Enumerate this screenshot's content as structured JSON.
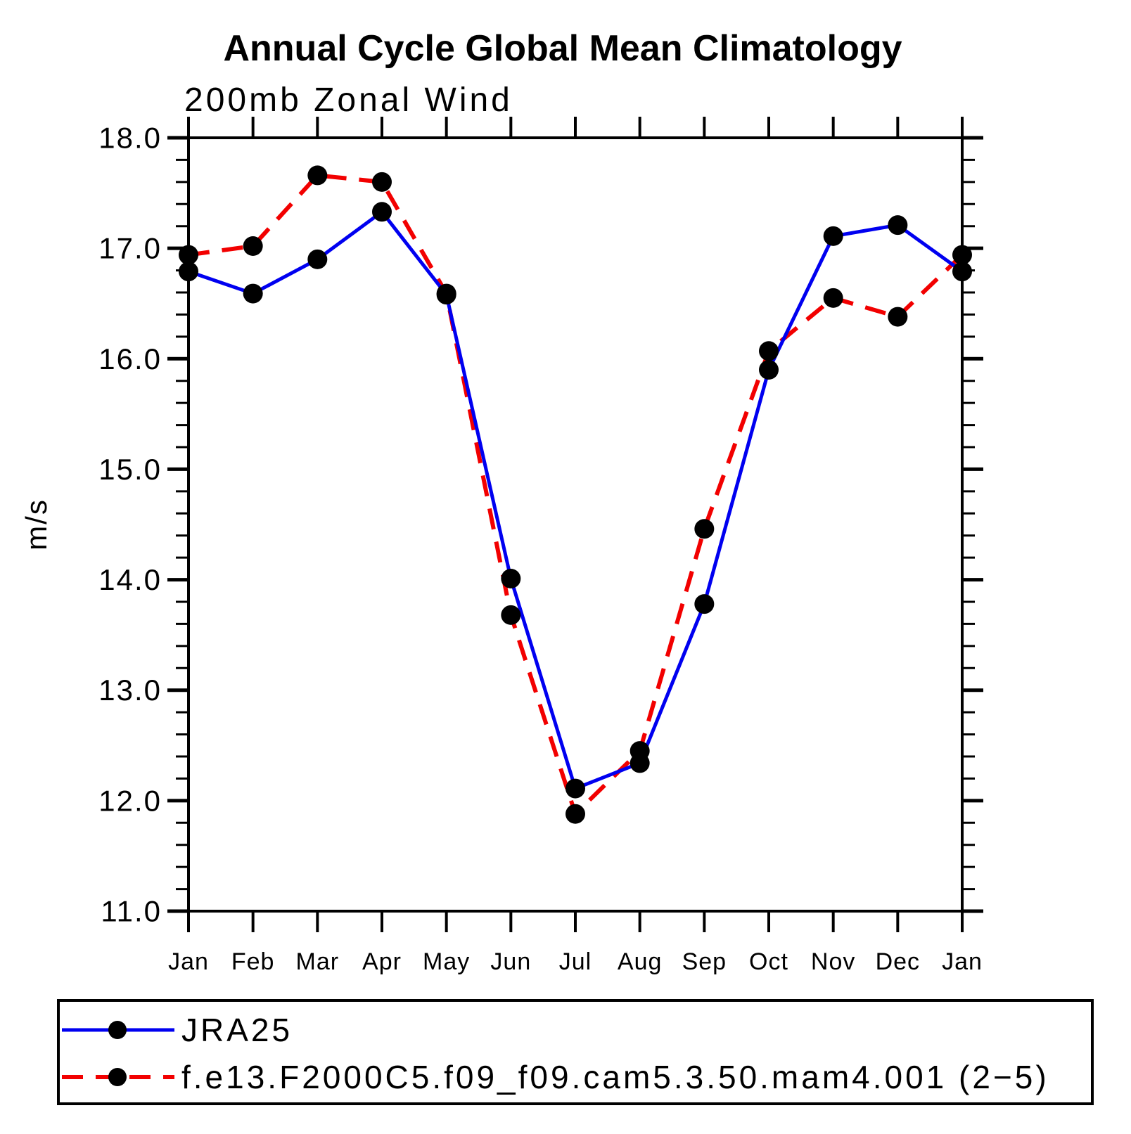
{
  "title": "Annual Cycle Global Mean Climatology",
  "subtitle": "200mb Zonal Wind",
  "ylabel": "m/s",
  "chart_data": {
    "type": "line",
    "title": "Annual Cycle Global Mean Climatology",
    "subtitle": "200mb Zonal Wind",
    "xlabel": "",
    "ylabel": "m/s",
    "ylim": [
      11.0,
      18.0
    ],
    "y_major_step": 1.0,
    "y_minor_step": 0.2,
    "y_tick_labels": [
      "18.0",
      "17.0",
      "16.0",
      "15.0",
      "14.0",
      "13.0",
      "12.0",
      "11.0"
    ],
    "categories": [
      "Jan",
      "Feb",
      "Mar",
      "Apr",
      "May",
      "Jun",
      "Jul",
      "Aug",
      "Sep",
      "Oct",
      "Nov",
      "Dec",
      "Jan"
    ],
    "grid": "off",
    "legend_position": "bottom",
    "marker": "filled-circle",
    "marker_color": "#000000",
    "series": [
      {
        "name": "JRA25",
        "line_style": "solid",
        "color": "#0000f0",
        "values": [
          16.79,
          16.59,
          16.9,
          17.33,
          16.58,
          14.01,
          12.11,
          12.34,
          13.78,
          15.9,
          17.11,
          17.21,
          16.79
        ]
      },
      {
        "name": "f.e13.F2000C5.f09_f09.cam5.3.50.mam4.001 (2−5)",
        "line_style": "dashed",
        "color": "#f20000",
        "values": [
          16.94,
          17.02,
          17.66,
          17.6,
          16.59,
          13.68,
          11.88,
          12.45,
          14.46,
          16.07,
          16.55,
          16.38,
          16.94
        ]
      }
    ],
    "axis_color": "#000000"
  }
}
